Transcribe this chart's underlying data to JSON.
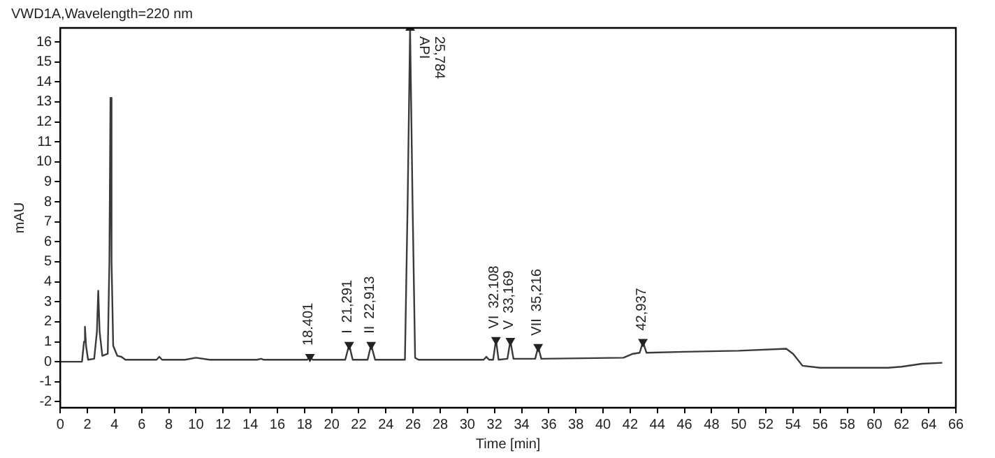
{
  "chart_data": {
    "type": "line",
    "title": "VWD1A,Wavelength=220 nm",
    "xlabel": "Time [min]",
    "ylabel": "mAU",
    "x": [
      0,
      1.6,
      1.75,
      1.82,
      1.9,
      2.05,
      2.5,
      2.7,
      2.8,
      2.9,
      3.1,
      3.5,
      3.62,
      3.7,
      3.78,
      3.9,
      4.2,
      4.5,
      4.8,
      7.1,
      7.3,
      7.5,
      9.2,
      10,
      11,
      14.5,
      14.8,
      15,
      18.2,
      18.4,
      18.6,
      21,
      21.29,
      21.55,
      22.65,
      22.91,
      23.2,
      25.4,
      25.6,
      25.78,
      25.96,
      26.15,
      26.4,
      31.2,
      31.4,
      31.6,
      31.9,
      32.11,
      32.3,
      32.95,
      33.17,
      33.4,
      35,
      35.22,
      35.45,
      41.5,
      42.2,
      42.7,
      42.94,
      43.2,
      46,
      50,
      53.5,
      54,
      54.7,
      56,
      61,
      62,
      63.5,
      65
    ],
    "series": [
      {
        "type": "scatter",
        "color": "#222222",
        "marker": "triangle",
        "x": [
          18.401,
          21.291,
          22.913,
          25.784,
          32.108,
          33.169,
          35.216,
          42.937
        ],
        "values": [
          0.25,
          0.85,
          0.85,
          16.7,
          1.1,
          1.05,
          0.75,
          1.0
        ]
      },
      {
        "color": "#3a3a3a",
        "values": [
          0,
          0,
          1.0,
          1.75,
          0.8,
          0.1,
          0.15,
          1.5,
          3.55,
          1.5,
          0.3,
          0.4,
          5,
          13.2,
          5,
          0.8,
          0.3,
          0.25,
          0.1,
          0.1,
          0.25,
          0.1,
          0.1,
          0.2,
          0.1,
          0.1,
          0.15,
          0.1,
          0.1,
          0.25,
          0.1,
          0.1,
          0.85,
          0.1,
          0.1,
          0.85,
          0.1,
          0.1,
          8,
          16.7,
          8,
          0.2,
          0.1,
          0.1,
          0.25,
          0.1,
          0.1,
          1.1,
          0.1,
          0.15,
          1.05,
          0.15,
          0.15,
          0.75,
          0.15,
          0.2,
          0.4,
          0.45,
          1.0,
          0.45,
          0.5,
          0.55,
          0.65,
          0.4,
          -0.2,
          -0.3,
          -0.3,
          -0.25,
          -0.1,
          -0.05
        ]
      }
    ],
    "xlim": [
      0,
      66
    ],
    "xticks": [
      0,
      2,
      4,
      6,
      8,
      10,
      12,
      14,
      16,
      18,
      20,
      22,
      24,
      26,
      28,
      30,
      32,
      34,
      36,
      38,
      40,
      42,
      44,
      46,
      48,
      50,
      52,
      54,
      56,
      58,
      60,
      62,
      64,
      66
    ],
    "ylim": [
      -2.3,
      16.7
    ],
    "yticks": [
      -2,
      -1,
      0,
      1,
      2,
      3,
      4,
      5,
      6,
      7,
      8,
      9,
      10,
      11,
      12,
      13,
      14,
      15,
      16
    ],
    "grid": false,
    "legend": false,
    "marker": "none",
    "line_style": "solid",
    "annotations": [
      {
        "text": "18.401",
        "x": 18.401,
        "y": 0.25
      },
      {
        "text": "21,291",
        "x": 21.291,
        "y": 0.85
      },
      {
        "text": "I",
        "x": 21.291,
        "y": 0.85
      },
      {
        "text": "22,913",
        "x": 22.913,
        "y": 0.85
      },
      {
        "text": "II",
        "x": 22.913,
        "y": 0.85
      },
      {
        "text": "25,784",
        "x": 25.784,
        "y": 16.7
      },
      {
        "text": "API",
        "x": 25.784,
        "y": 16.7
      },
      {
        "text": "32.108",
        "x": 32.108,
        "y": 1.1
      },
      {
        "text": "VI",
        "x": 32.108,
        "y": 1.1
      },
      {
        "text": "33,169",
        "x": 33.169,
        "y": 1.05
      },
      {
        "text": "V",
        "x": 33.169,
        "y": 1.05
      },
      {
        "text": "35,216",
        "x": 35.216,
        "y": 0.75
      },
      {
        "text": "VII",
        "x": 35.216,
        "y": 0.75
      },
      {
        "text": "42,937",
        "x": 42.937,
        "y": 1.0
      }
    ]
  }
}
